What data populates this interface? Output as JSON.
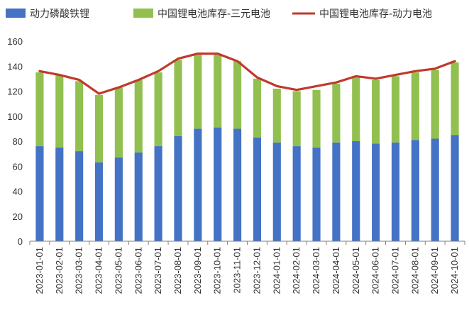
{
  "chart_data": {
    "type": "bar",
    "stacked": true,
    "title": "",
    "xlabel": "",
    "ylabel": "",
    "ylim": [
      0,
      160
    ],
    "yticks": [
      0,
      20,
      40,
      60,
      80,
      100,
      120,
      140,
      160
    ],
    "grid": false,
    "legend_position": "top",
    "categories": [
      "2023-01-01",
      "2023-02-01",
      "2023-03-01",
      "2023-04-01",
      "2023-05-01",
      "2023-06-01",
      "2023-07-01",
      "2023-08-01",
      "2023-09-01",
      "2023-10-01",
      "2023-11-01",
      "2023-12-01",
      "2024-01-01",
      "2024-02-01",
      "2024-03-01",
      "2024-04-01",
      "2024-05-01",
      "2024-06-01",
      "2024-07-01",
      "2024-08-01",
      "2024-09-01",
      "2024-10-01"
    ],
    "series": [
      {
        "name": "动力磷酸铁锂",
        "kind": "bar",
        "color": "#4472c4",
        "values": [
          76,
          75,
          72,
          63,
          67,
          71,
          76,
          84,
          90,
          91,
          90,
          83,
          79,
          76,
          75,
          79,
          80,
          78,
          79,
          81,
          82,
          85
        ]
      },
      {
        "name": "中国锂电池库存-三元电池",
        "kind": "bar",
        "color": "#92c050",
        "values": [
          59,
          58,
          56,
          54,
          56,
          58,
          59,
          61,
          59,
          58,
          54,
          47,
          43,
          44,
          46,
          47,
          51,
          51,
          53,
          54,
          55,
          58
        ]
      },
      {
        "name": "中国锂电池库存-动力电池",
        "kind": "line",
        "color": "#c0392b",
        "values": [
          136,
          133,
          129,
          118,
          123,
          129,
          136,
          146,
          150,
          150,
          144,
          131,
          124,
          121,
          124,
          127,
          132,
          130,
          133,
          136,
          138,
          144
        ]
      }
    ]
  }
}
